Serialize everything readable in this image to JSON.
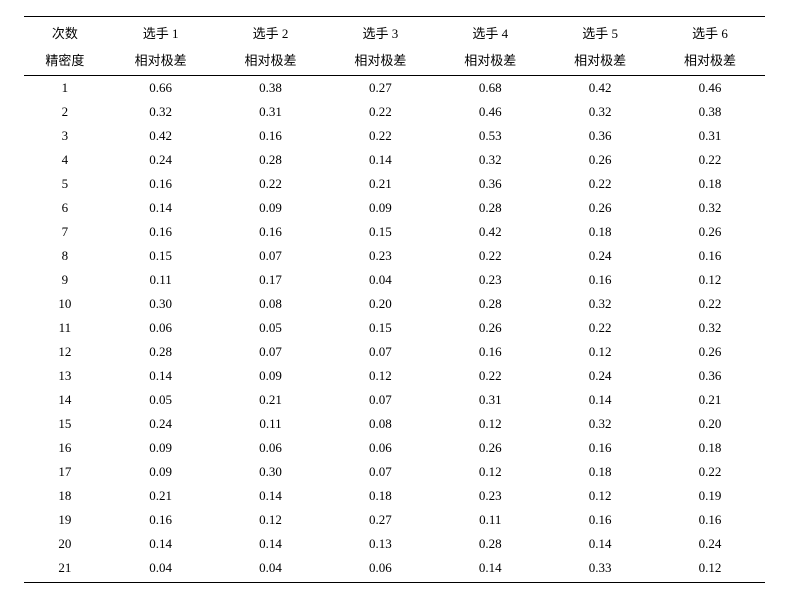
{
  "table": {
    "header_row1": [
      "次数",
      "选手 1",
      "选手 2",
      "选手 3",
      "选手 4",
      "选手 5",
      "选手 6"
    ],
    "header_row2": [
      "精密度",
      "相对极差",
      "相对极差",
      "相对极差",
      "相对极差",
      "相对极差",
      "相对极差"
    ],
    "rows": [
      [
        "1",
        "0.66",
        "0.38",
        "0.27",
        "0.68",
        "0.42",
        "0.46"
      ],
      [
        "2",
        "0.32",
        "0.31",
        "0.22",
        "0.46",
        "0.32",
        "0.38"
      ],
      [
        "3",
        "0.42",
        "0.16",
        "0.22",
        "0.53",
        "0.36",
        "0.31"
      ],
      [
        "4",
        "0.24",
        "0.28",
        "0.14",
        "0.32",
        "0.26",
        "0.22"
      ],
      [
        "5",
        "0.16",
        "0.22",
        "0.21",
        "0.36",
        "0.22",
        "0.18"
      ],
      [
        "6",
        "0.14",
        "0.09",
        "0.09",
        "0.28",
        "0.26",
        "0.32"
      ],
      [
        "7",
        "0.16",
        "0.16",
        "0.15",
        "0.42",
        "0.18",
        "0.26"
      ],
      [
        "8",
        "0.15",
        "0.07",
        "0.23",
        "0.22",
        "0.24",
        "0.16"
      ],
      [
        "9",
        "0.11",
        "0.17",
        "0.04",
        "0.23",
        "0.16",
        "0.12"
      ],
      [
        "10",
        "0.30",
        "0.08",
        "0.20",
        "0.28",
        "0.32",
        "0.22"
      ],
      [
        "11",
        "0.06",
        "0.05",
        "0.15",
        "0.26",
        "0.22",
        "0.32"
      ],
      [
        "12",
        "0.28",
        "0.07",
        "0.07",
        "0.16",
        "0.12",
        "0.26"
      ],
      [
        "13",
        "0.14",
        "0.09",
        "0.12",
        "0.22",
        "0.24",
        "0.36"
      ],
      [
        "14",
        "0.05",
        "0.21",
        "0.07",
        "0.31",
        "0.14",
        "0.21"
      ],
      [
        "15",
        "0.24",
        "0.11",
        "0.08",
        "0.12",
        "0.32",
        "0.20"
      ],
      [
        "16",
        "0.09",
        "0.06",
        "0.06",
        "0.26",
        "0.16",
        "0.18"
      ],
      [
        "17",
        "0.09",
        "0.30",
        "0.07",
        "0.12",
        "0.18",
        "0.22"
      ],
      [
        "18",
        "0.21",
        "0.14",
        "0.18",
        "0.23",
        "0.12",
        "0.19"
      ],
      [
        "19",
        "0.16",
        "0.12",
        "0.27",
        "0.11",
        "0.16",
        "0.16"
      ],
      [
        "20",
        "0.14",
        "0.14",
        "0.13",
        "0.28",
        "0.14",
        "0.24"
      ],
      [
        "21",
        "0.04",
        "0.04",
        "0.06",
        "0.14",
        "0.33",
        "0.12"
      ]
    ],
    "columns": 7,
    "border_color": "#000000",
    "background_color": "#ffffff",
    "font_size_pt": 10
  }
}
